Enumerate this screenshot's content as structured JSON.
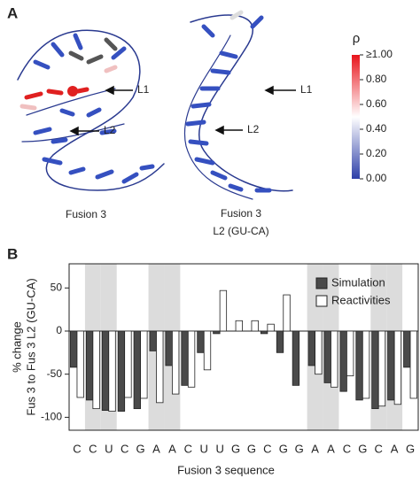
{
  "panel_a": {
    "label": "A",
    "structures": [
      {
        "caption": [
          "Fusion 3"
        ],
        "arrows": [
          "L1",
          "L2"
        ]
      },
      {
        "caption": [
          "Fusion 3",
          "L2 (GU-CA)"
        ],
        "arrows": [
          "L1",
          "L2"
        ]
      }
    ],
    "colorbar": {
      "title": "ρ",
      "lim": [
        0,
        1
      ],
      "ticks": [
        {
          "value": 1,
          "label": "≥1.00"
        },
        {
          "value": 0.8,
          "label": "0.80"
        },
        {
          "value": 0.6,
          "label": "0.60"
        },
        {
          "value": 0.4,
          "label": "0.40"
        },
        {
          "value": 0.2,
          "label": "0.20"
        },
        {
          "value": 0,
          "label": "0.00"
        }
      ]
    }
  },
  "chart_data": {
    "type": "bar",
    "panel_label": "B",
    "xlabel": "Fusion 3 sequence",
    "ylabel": [
      "% change",
      "Fus 3 to Fus 3 L2 (GU-CA)"
    ],
    "categories": [
      "C",
      "C",
      "U",
      "C",
      "G",
      "A",
      "A",
      "C",
      "U",
      "U",
      "G",
      "G",
      "C",
      "G",
      "G",
      "A",
      "A",
      "C",
      "G",
      "C",
      "A",
      "G"
    ],
    "highlight_categories": [
      1,
      2,
      5,
      6,
      15,
      16,
      19,
      20
    ],
    "series": [
      {
        "name": "Simulation",
        "color": "#4a4a4a",
        "values": [
          -42,
          -80,
          -92,
          -93,
          -90,
          -23,
          -40,
          -63,
          -25,
          -3,
          0,
          0,
          -3,
          -25,
          -63,
          -40,
          -60,
          -70,
          -80,
          -90,
          -80,
          -42
        ]
      },
      {
        "name": "Reactivities",
        "color": "#ffffff",
        "values": [
          -77,
          -90,
          -93,
          -77,
          -78,
          -83,
          -73,
          -65,
          -45,
          47,
          12,
          12,
          8,
          42,
          0,
          -50,
          -65,
          -52,
          -78,
          -87,
          -85,
          -78
        ]
      }
    ],
    "ylim": [
      -115,
      78
    ],
    "yticks": [
      -100,
      -50,
      0,
      50
    ],
    "legend": "upper right"
  }
}
